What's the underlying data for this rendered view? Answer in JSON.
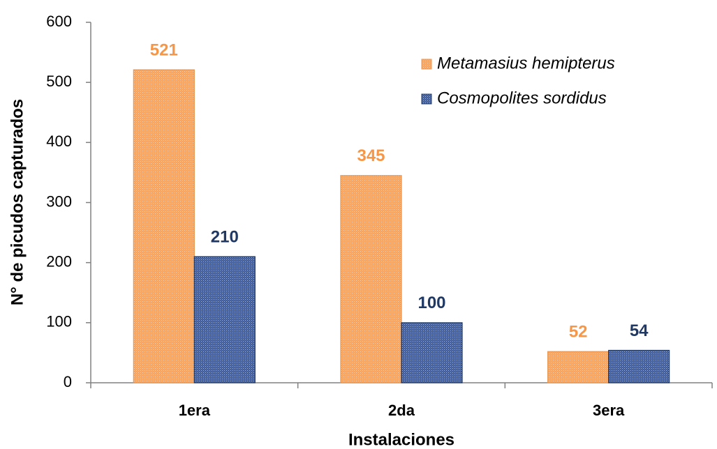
{
  "chart_data": {
    "type": "bar",
    "x_label": "Instalaciones",
    "y_label": "N° de picudos capturados",
    "categories": [
      "1era",
      "2da",
      "3era"
    ],
    "series": [
      {
        "name": "Metamasius hemipterus",
        "color": "#f7a15a",
        "label_color": "#f79646",
        "values": [
          521,
          345,
          52
        ]
      },
      {
        "name": "Cosmopolites sordidus",
        "color": "#3c5a9a",
        "label_color": "#1f3864",
        "values": [
          210,
          100,
          54
        ]
      }
    ],
    "ylim": [
      0,
      600
    ],
    "yticks": [
      0,
      100,
      200,
      300,
      400,
      500,
      600
    ],
    "legend": "upper right"
  }
}
